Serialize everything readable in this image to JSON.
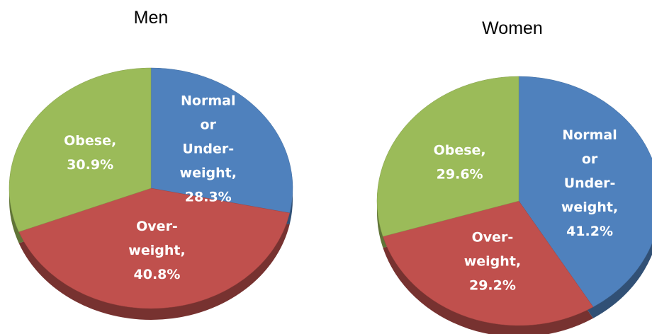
{
  "chart_data": [
    {
      "type": "pie",
      "title": "Men",
      "values": [
        28.3,
        40.8,
        30.9
      ],
      "value_labels": [
        "Normal or Under-weight, 28.3%",
        "Over-weight, 40.8%",
        "Obese, 30.9%"
      ],
      "colors": [
        "#4f81bd",
        "#c0504d",
        "#9bbb59"
      ]
    },
    {
      "type": "pie",
      "title": "Women",
      "values": [
        41.2,
        29.2,
        29.6
      ],
      "value_labels": [
        "Normal or Under-weight, 41.2%",
        "Over-weight, 29.2%",
        "Obese, 29.6%"
      ],
      "colors": [
        "#4f81bd",
        "#c0504d",
        "#9bbb59"
      ]
    }
  ]
}
